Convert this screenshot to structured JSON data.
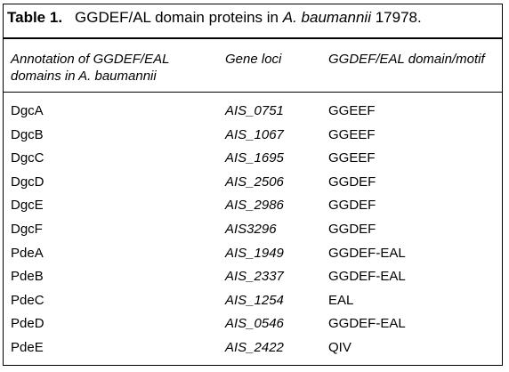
{
  "caption": {
    "label": "Table 1.",
    "text_before": "GGDEF/AL domain proteins in ",
    "species": "A. baumannii",
    "text_after": " 17978."
  },
  "header": {
    "col1_line1": "Annotation of GGDEF/EAL",
    "col1_line2": "domains in A. baumannii",
    "col2": "Gene loci",
    "col3": "GGDEF/EAL domain/motif"
  },
  "rows": [
    {
      "annotation": "DgcA",
      "locus": "AIS_0751",
      "motif": "GGEEF"
    },
    {
      "annotation": "DgcB",
      "locus": "AIS_1067",
      "motif": "GGEEF"
    },
    {
      "annotation": "DgcC",
      "locus": "AIS_1695",
      "motif": "GGEEF"
    },
    {
      "annotation": "DgcD",
      "locus": "AIS_2506",
      "motif": "GGDEF"
    },
    {
      "annotation": "DgcE",
      "locus": "AIS_2986",
      "motif": "GGDEF"
    },
    {
      "annotation": "DgcF",
      "locus": "AIS3296",
      "motif": "GGDEF"
    },
    {
      "annotation": "PdeA",
      "locus": "AIS_1949",
      "motif": "GGDEF-EAL"
    },
    {
      "annotation": "PdeB",
      "locus": "AIS_2337",
      "motif": "GGDEF-EAL"
    },
    {
      "annotation": "PdeC",
      "locus": "AIS_1254",
      "motif": "EAL"
    },
    {
      "annotation": "PdeD",
      "locus": "AIS_0546",
      "motif": "GGDEF-EAL"
    },
    {
      "annotation": "PdeE",
      "locus": "AIS_2422",
      "motif": "QIV"
    }
  ]
}
